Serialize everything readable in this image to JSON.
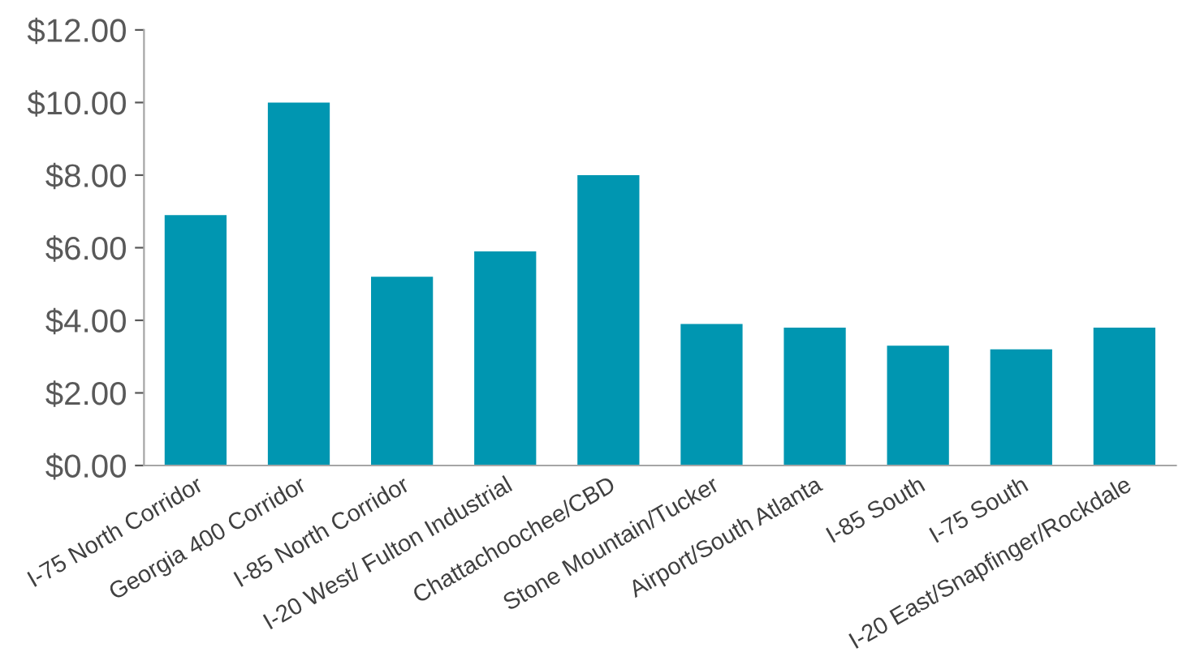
{
  "chart_data": {
    "type": "bar",
    "categories": [
      "I-75 North Corridor",
      "Georgia 400 Corridor",
      "I-85 North Corridor",
      "I-20 West/ Fulton Industrial",
      "Chattachoochee/CBD",
      "Stone Mountain/Tucker",
      "Airport/South Atlanta",
      "I-85 South",
      "I-75 South",
      "I-20 East/Snapfinger/Rockdale"
    ],
    "values": [
      6.9,
      10.0,
      5.2,
      5.9,
      8.0,
      3.9,
      3.8,
      3.3,
      3.2,
      3.8
    ],
    "color": "#0096b1",
    "ylim": [
      0,
      12
    ],
    "yticks": [
      {
        "value": 0,
        "label": "$0.00"
      },
      {
        "value": 2,
        "label": "$2.00"
      },
      {
        "value": 4,
        "label": "$4.00"
      },
      {
        "value": 6,
        "label": "$6.00"
      },
      {
        "value": 8,
        "label": "$8.00"
      },
      {
        "value": 10,
        "label": "$10.00"
      },
      {
        "value": 12,
        "label": "$12.00"
      }
    ],
    "grid": false
  }
}
